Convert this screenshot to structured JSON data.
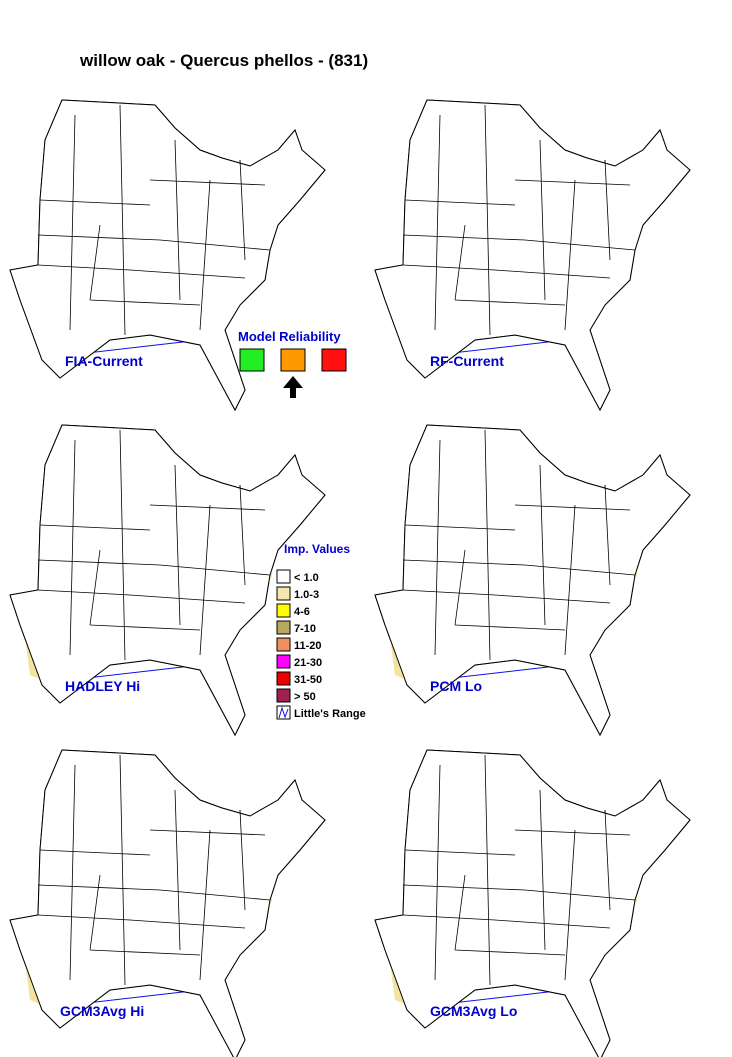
{
  "title": "willow oak - Quercus phellos - (831)",
  "panels": [
    {
      "label": "FIA-Current"
    },
    {
      "label": "RF-Current"
    },
    {
      "label": "HADLEY Hi"
    },
    {
      "label": "PCM Lo"
    },
    {
      "label": "GCM3Avg Hi"
    },
    {
      "label": "GCM3Avg Lo"
    }
  ],
  "model_reliability": {
    "title": "Model Reliability",
    "levels": [
      {
        "color": "#22ee22"
      },
      {
        "color": "#ff9900"
      },
      {
        "color": "#ff1111"
      }
    ]
  },
  "legend": {
    "title": "Imp. Values",
    "items": [
      {
        "label": "< 1.0",
        "color": "#ffffff"
      },
      {
        "label": "1.0-3",
        "color": "#f5e6b0"
      },
      {
        "label": "4-6",
        "color": "#ffff00"
      },
      {
        "label": "7-10",
        "color": "#b8a860"
      },
      {
        "label": "11-20",
        "color": "#f09060"
      },
      {
        "label": "21-30",
        "color": "#ff00ff"
      },
      {
        "label": "31-50",
        "color": "#ee0000"
      },
      {
        "label": "> 50",
        "color": "#a02050"
      }
    ],
    "range_label": "Little's Range"
  }
}
